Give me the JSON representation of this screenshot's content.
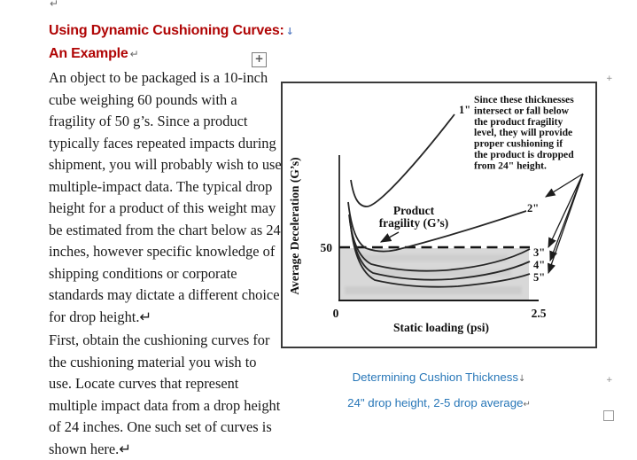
{
  "document": {
    "top_mark": "↵",
    "heading": {
      "line1": "Using Dynamic Cushioning Curves:",
      "line1_mark": "↓",
      "line2": "An Example",
      "line2_mark": "↵"
    },
    "paragraph1_lines": [
      "An object to be packaged is a 10-inch",
      "cube weighing 60 pounds with a",
      "fragility of 50 g’s. Since a product",
      "typically faces repeated impacts during",
      "shipment, you will probably wish to use",
      "multiple-impact data. The typical drop",
      "height for a product of this weight may",
      "be estimated from the chart below as 24",
      "inches, however specific knowledge of",
      "shipping conditions or corporate",
      "standards may dictate a different choice",
      "for drop height.↵"
    ],
    "paragraph2_lines": [
      "First, obtain the cushioning curves for",
      "the cushioning material you wish to",
      "use. Locate curves that represent",
      "multiple impact data from a drop height",
      "of 24 inches. One such set of curves is",
      "shown here.↵"
    ],
    "move_handle_glyph": "+",
    "margin_marks": {
      "top_plus": "+",
      "mid_plus": "+"
    }
  },
  "figure": {
    "annotation_lines": [
      "Since these thicknesses",
      "intersect or fall below",
      "the product fragility",
      "level, they will provide",
      "proper cushioning if",
      "the product is dropped",
      "from 24\" height."
    ],
    "thickness_labels": [
      "1\"",
      "2\"",
      "3\"",
      "4\"",
      "5\""
    ],
    "fragility_label_line1": "Product",
    "fragility_label_line2": "fragility (G’s)",
    "y_axis_label": "Average Deceleration (G’s)",
    "x_axis_label": "Static loading (psi)",
    "tick_50": "50",
    "tick_0": "0",
    "tick_2_5": "2.5"
  },
  "caption": {
    "line1": "Determining Cushion Thickness",
    "line1_mark": "↓",
    "line2": "24\" drop height, 2-5 drop average",
    "line2_mark": "↵"
  },
  "colors": {
    "heading_red": "#b00505",
    "caption_blue": "#2877b8",
    "figure_border": "#3a3a3a",
    "shaded_region": "#d8d8d8",
    "curve_stroke": "#262626"
  },
  "chart_data": {
    "type": "line",
    "title": "Determining Cushion Thickness",
    "subtitle": "24\" drop height, 2-5 drop average",
    "xlabel": "Static loading (psi)",
    "ylabel": "Average Deceleration (G's)",
    "xlim": [
      0,
      2.5
    ],
    "x_ticks": [
      0,
      2.5
    ],
    "y_ticks": [
      50
    ],
    "grid": false,
    "reference_line": {
      "label": "Product fragility (G's)",
      "value": 50,
      "style": "dashed-bold"
    },
    "shaded_region": "area below 50 G's between 0 and ~2.4 psi is shaded gray",
    "series": [
      {
        "name": "1\" cushion thickness",
        "points": [
          [
            0.15,
            115
          ],
          [
            0.35,
            90
          ],
          [
            0.8,
            118
          ],
          [
            1.4,
            178
          ]
        ]
      },
      {
        "name": "2\" cushion thickness",
        "points": [
          [
            0.12,
            94
          ],
          [
            0.35,
            51
          ],
          [
            0.7,
            48
          ],
          [
            1.2,
            57
          ],
          [
            1.8,
            70
          ],
          [
            2.3,
            86
          ]
        ]
      },
      {
        "name": "3\" cushion thickness",
        "points": [
          [
            0.12,
            82
          ],
          [
            0.4,
            36
          ],
          [
            1.0,
            30
          ],
          [
            1.6,
            31
          ],
          [
            2.1,
            41
          ],
          [
            2.35,
            50
          ]
        ]
      },
      {
        "name": "4\" cushion thickness",
        "points": [
          [
            0.13,
            76
          ],
          [
            0.45,
            28
          ],
          [
            1.1,
            22
          ],
          [
            1.7,
            24
          ],
          [
            2.2,
            32
          ],
          [
            2.35,
            38
          ]
        ]
      },
      {
        "name": "5\" cushion thickness",
        "points": [
          [
            0.14,
            70
          ],
          [
            0.5,
            22
          ],
          [
            1.2,
            16
          ],
          [
            1.8,
            18
          ],
          [
            2.3,
            25
          ],
          [
            2.35,
            26
          ]
        ]
      }
    ],
    "annotation": "Since these thicknesses intersect or fall below the product fragility level, they will provide proper cushioning if the product is dropped from 24\" height.",
    "legend_position": "labels at right end of each curve (1\"–5\")"
  }
}
